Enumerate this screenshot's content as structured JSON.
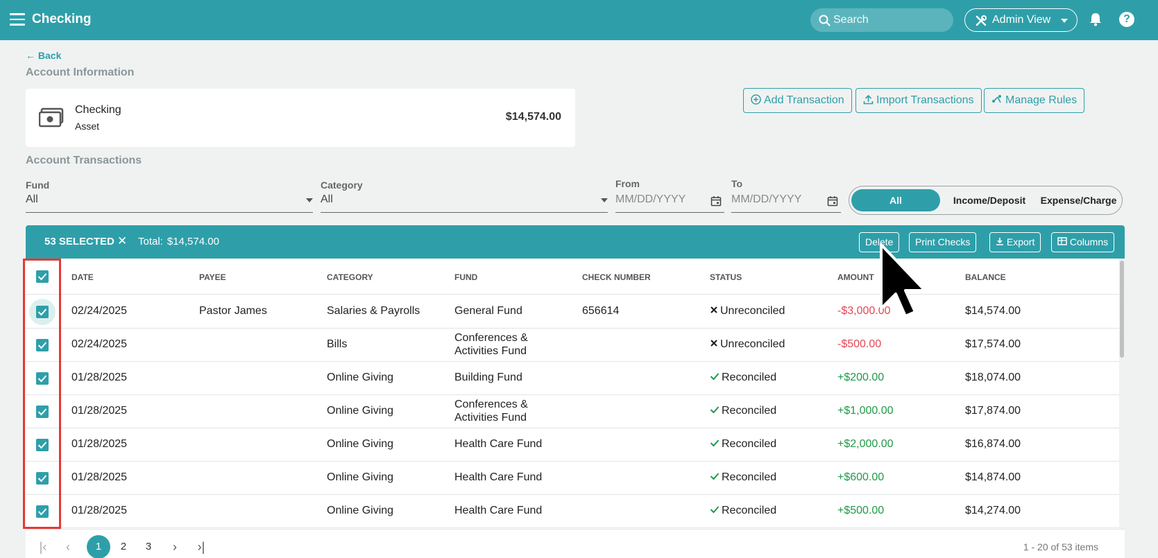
{
  "app": {
    "title": "Checking"
  },
  "topbar": {
    "search_placeholder": "Search",
    "admin_view_label": "Admin View",
    "help_label": "?"
  },
  "back_label": "Back",
  "account_info": {
    "heading": "Account Information",
    "name": "Checking",
    "type": "Asset",
    "balance": "$14,574.00"
  },
  "actions": {
    "add_transaction": "Add Transaction",
    "import_transactions": "Import Transactions",
    "manage_rules": "Manage Rules"
  },
  "transactions_heading": "Account Transactions",
  "filters": {
    "fund_label": "Fund",
    "fund_value": "All",
    "category_label": "Category",
    "category_value": "All",
    "from_label": "From",
    "from_placeholder": "MM/DD/YYYY",
    "to_label": "To",
    "to_placeholder": "MM/DD/YYYY",
    "segments": [
      "All",
      "Income/Deposit",
      "Expense/Charge"
    ],
    "active_segment": "All"
  },
  "selection_bar": {
    "count": "53 SELECTED",
    "total_label": "Total:",
    "total_value": "$14,574.00",
    "delete": "Delete",
    "print_checks": "Print Checks",
    "export": "Export",
    "columns": "Columns"
  },
  "table": {
    "headers": [
      "DATE",
      "PAYEE",
      "CATEGORY",
      "FUND",
      "CHECK NUMBER",
      "STATUS",
      "AMOUNT",
      "BALANCE"
    ],
    "rows": [
      {
        "date": "02/24/2025",
        "payee": "Pastor James",
        "category": "Salaries & Payrolls",
        "fund": "General Fund",
        "fund2": "",
        "check": "656614",
        "status": "Unreconciled",
        "amount": "-$3,000.00",
        "balance": "$14,574.00"
      },
      {
        "date": "02/24/2025",
        "payee": "",
        "category": "Bills",
        "fund": "Conferences &",
        "fund2": "Activities Fund",
        "check": "",
        "status": "Unreconciled",
        "amount": "-$500.00",
        "balance": "$17,574.00"
      },
      {
        "date": "01/28/2025",
        "payee": "",
        "category": "Online Giving",
        "fund": "Building Fund",
        "fund2": "",
        "check": "",
        "status": "Reconciled",
        "amount": "+$200.00",
        "balance": "$18,074.00"
      },
      {
        "date": "01/28/2025",
        "payee": "",
        "category": "Online Giving",
        "fund": "Conferences &",
        "fund2": "Activities Fund",
        "check": "",
        "status": "Reconciled",
        "amount": "+$1,000.00",
        "balance": "$17,874.00"
      },
      {
        "date": "01/28/2025",
        "payee": "",
        "category": "Online Giving",
        "fund": "Health Care Fund",
        "fund2": "",
        "check": "",
        "status": "Reconciled",
        "amount": "+$2,000.00",
        "balance": "$16,874.00"
      },
      {
        "date": "01/28/2025",
        "payee": "",
        "category": "Online Giving",
        "fund": "Health Care Fund",
        "fund2": "",
        "check": "",
        "status": "Reconciled",
        "amount": "+$600.00",
        "balance": "$14,874.00"
      },
      {
        "date": "01/28/2025",
        "payee": "",
        "category": "Online Giving",
        "fund": "Health Care Fund",
        "fund2": "",
        "check": "",
        "status": "Reconciled",
        "amount": "+$500.00",
        "balance": "$14,274.00"
      }
    ]
  },
  "pagination": {
    "pages": [
      "1",
      "2",
      "3"
    ],
    "current": "1",
    "info": "1 - 20 of 53 items"
  },
  "colors": {
    "primary": "#2e9fa9",
    "negative": "#e64553",
    "positive": "#1f9a48",
    "highlight": "#e53935"
  }
}
